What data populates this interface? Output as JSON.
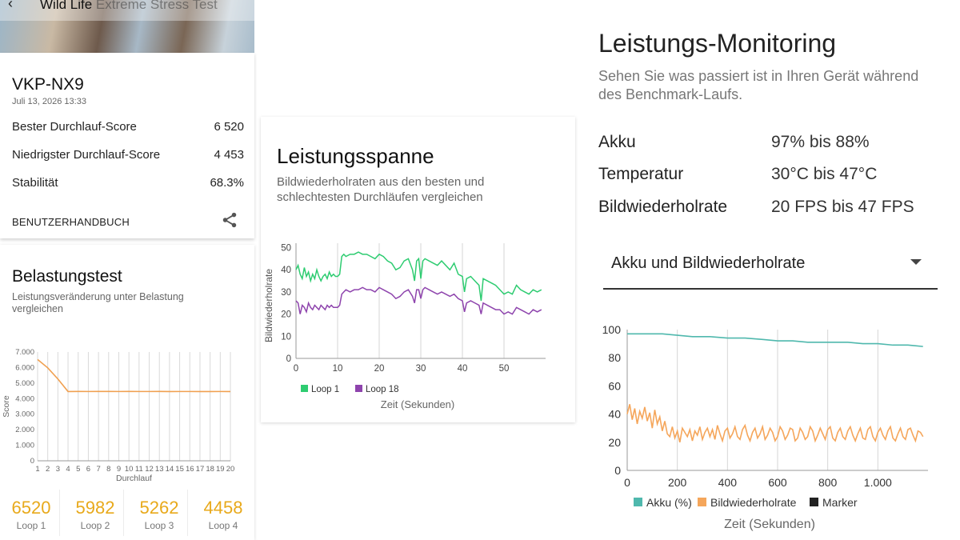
{
  "header": {
    "title_main": "Wild Life",
    "title_rest": " Extreme Stress Test"
  },
  "device": {
    "name": "VKP-NX9",
    "date": "Juli 13, 2026 13:33",
    "stats": [
      {
        "label": "Bester Durchlauf-Score",
        "value": "6 520"
      },
      {
        "label": "Niedrigster Durchlauf-Score",
        "value": "4 453"
      },
      {
        "label": "Stabilität",
        "value": "68.3%"
      }
    ],
    "manual_label": "BENUTZERHANDBUCH"
  },
  "stress": {
    "title": "Belastungstest",
    "subtitle": "Leistungsveränderung unter Belastung vergleichen",
    "loops": [
      {
        "score": "6520",
        "label": "Loop 1"
      },
      {
        "score": "5982",
        "label": "Loop 2"
      },
      {
        "score": "5262",
        "label": "Loop 3"
      },
      {
        "score": "4458",
        "label": "Loop 4"
      }
    ]
  },
  "range": {
    "title": "Leistungsspanne",
    "subtitle": "Bildwiederholraten aus den besten und schlechtesten Durchläufen vergleichen"
  },
  "monitor": {
    "title": "Leistungs-Monitoring",
    "subtitle": "Sehen Sie was passiert ist in Ihren Gerät während des Benchmark-Laufs.",
    "rows": [
      {
        "label": "Akku",
        "value": "97% bis 88%"
      },
      {
        "label": "Temperatur",
        "value": "30°C bis 47°C"
      },
      {
        "label": "Bildwiederholrate",
        "value": "20 FPS bis 47 FPS"
      }
    ],
    "dropdown_value": "Akku und Bildwiederholrate"
  },
  "chart_data": [
    {
      "type": "line",
      "xlabel": "Durchlauf",
      "ylabel": "Score",
      "x": [
        1,
        2,
        3,
        4,
        5,
        6,
        7,
        8,
        9,
        10,
        11,
        12,
        13,
        14,
        15,
        16,
        17,
        18,
        19,
        20
      ],
      "ylim": [
        0,
        7000
      ],
      "yticks": [
        "0",
        "1.000",
        "2.000",
        "3.000",
        "4.000",
        "5.000",
        "6.000",
        "7.000"
      ],
      "series": [
        {
          "values": [
            6520,
            5982,
            5262,
            4458,
            4460,
            4458,
            4462,
            4460,
            4458,
            4461,
            4459,
            4458,
            4460,
            4457,
            4459,
            4458,
            4456,
            4455,
            4458,
            4453
          ],
          "color": "#f0a050"
        }
      ],
      "grid": "vertical"
    },
    {
      "type": "line",
      "xlabel": "Zeit (Sekunden)",
      "ylabel": "Bildwiederholrate",
      "xlim": [
        0,
        60
      ],
      "ylim": [
        0,
        52
      ],
      "xticks": [
        0,
        10,
        20,
        30,
        40,
        50
      ],
      "yticks": [
        0,
        10,
        20,
        30,
        40,
        50
      ],
      "legend_position": "bottom",
      "series": [
        {
          "name": "Loop 1",
          "color": "#2ecc71",
          "x": [
            0,
            0.5,
            1,
            1.5,
            2,
            2.5,
            3,
            3.5,
            4,
            4.5,
            5,
            5.5,
            6,
            6.5,
            7,
            7.5,
            8,
            8.5,
            9,
            9.5,
            10,
            10.5,
            11,
            11.5,
            12,
            13,
            14,
            15,
            16,
            17,
            18,
            19,
            20,
            21,
            22,
            23,
            24,
            25,
            26,
            27,
            28,
            28.5,
            29,
            29.5,
            30,
            30.5,
            31,
            32,
            33,
            34,
            35,
            36,
            37,
            38,
            39,
            40,
            40.5,
            41,
            42,
            43,
            44,
            44.5,
            45,
            46,
            47,
            48,
            49,
            50,
            51,
            52,
            53,
            54,
            55,
            56,
            57,
            58,
            59
          ],
          "y": [
            40,
            42,
            38,
            36,
            41,
            37,
            39,
            35,
            38,
            36,
            40,
            37,
            35,
            37,
            38,
            36,
            39,
            37,
            38,
            37,
            37,
            38,
            46,
            47,
            46,
            47,
            47,
            48,
            47,
            47,
            46,
            45,
            47,
            46,
            44,
            43,
            40,
            41,
            44,
            45,
            40,
            35,
            44,
            45,
            36,
            44,
            45,
            44,
            43,
            42,
            44,
            42,
            40,
            43,
            38,
            37,
            30,
            36,
            37,
            35,
            33,
            26,
            36,
            35,
            34,
            33,
            31,
            29,
            30,
            29,
            33,
            31,
            30,
            29,
            31,
            30,
            31
          ]
        },
        {
          "name": "Loop 18",
          "color": "#8e44ad",
          "x": [
            0,
            0.5,
            1,
            1.5,
            2,
            2.5,
            3,
            3.5,
            4,
            4.5,
            5,
            5.5,
            6,
            6.5,
            7,
            7.5,
            8,
            8.5,
            9,
            9.5,
            10,
            10.5,
            11,
            11.5,
            12,
            13,
            14,
            15,
            16,
            17,
            18,
            19,
            20,
            21,
            22,
            23,
            24,
            25,
            26,
            27,
            28,
            28.5,
            29,
            29.5,
            30,
            30.5,
            31,
            32,
            33,
            34,
            35,
            36,
            37,
            38,
            39,
            40,
            40.5,
            41,
            42,
            43,
            44,
            44.5,
            45,
            46,
            47,
            48,
            49,
            50,
            51,
            52,
            53,
            54,
            55,
            56,
            57,
            58,
            59
          ],
          "y": [
            26,
            25,
            20,
            24,
            23,
            21,
            25,
            23,
            22,
            24,
            23,
            22,
            24,
            23,
            22,
            24,
            23,
            24,
            23,
            23,
            23,
            24,
            29,
            30,
            31,
            30,
            31,
            31,
            32,
            31,
            31,
            30,
            32,
            31,
            30,
            29,
            27,
            28,
            30,
            31,
            28,
            25,
            31,
            31,
            27,
            31,
            32,
            31,
            30,
            29,
            30,
            29,
            28,
            29,
            27,
            26,
            21,
            25,
            26,
            25,
            24,
            20,
            25,
            24,
            23,
            22,
            22,
            20,
            21,
            20,
            23,
            22,
            21,
            20,
            22,
            21,
            22
          ]
        }
      ]
    },
    {
      "type": "line",
      "xlabel": "Zeit (Sekunden)",
      "xlim": [
        0,
        1200
      ],
      "ylim": [
        0,
        100
      ],
      "xticks": [
        "0",
        "200",
        "400",
        "600",
        "800",
        "1.000"
      ],
      "yticks": [
        0,
        20,
        40,
        60,
        80,
        100
      ],
      "legend_position": "bottom",
      "legend": [
        "Akku (%)",
        "Bildwiederholrate",
        "Marker"
      ],
      "series": [
        {
          "name": "Akku (%)",
          "color": "#4fb8ad",
          "x": [
            0,
            70,
            140,
            200,
            260,
            330,
            400,
            470,
            540,
            600,
            660,
            720,
            800,
            880,
            940,
            1000,
            1060,
            1120,
            1180
          ],
          "y": [
            97,
            97,
            97,
            96,
            95,
            95,
            94,
            94,
            93,
            92,
            92,
            91,
            91,
            91,
            90,
            90,
            89,
            89,
            88
          ]
        },
        {
          "name": "Bildwiederholrate",
          "color": "#f5a65b",
          "x": [
            0,
            10,
            20,
            30,
            40,
            50,
            60,
            70,
            80,
            90,
            100,
            110,
            120,
            130,
            140,
            150,
            160,
            170,
            180,
            190,
            200,
            210,
            220,
            230,
            240,
            250,
            260,
            270,
            280,
            290,
            300,
            310,
            320,
            330,
            340,
            350,
            360,
            370,
            380,
            390,
            400,
            410,
            420,
            430,
            440,
            450,
            460,
            470,
            480,
            490,
            500,
            510,
            520,
            530,
            540,
            550,
            560,
            570,
            580,
            590,
            600,
            610,
            620,
            630,
            640,
            650,
            660,
            670,
            680,
            690,
            700,
            710,
            720,
            730,
            740,
            750,
            760,
            770,
            780,
            790,
            800,
            810,
            820,
            830,
            840,
            850,
            860,
            870,
            880,
            890,
            900,
            910,
            920,
            930,
            940,
            950,
            960,
            970,
            980,
            990,
            1000,
            1010,
            1020,
            1030,
            1040,
            1050,
            1060,
            1070,
            1080,
            1090,
            1100,
            1110,
            1120,
            1130,
            1140,
            1150,
            1160,
            1170,
            1180
          ],
          "y": [
            40,
            47,
            36,
            44,
            33,
            42,
            37,
            45,
            35,
            41,
            30,
            43,
            33,
            38,
            28,
            35,
            26,
            24,
            31,
            23,
            28,
            20,
            30,
            27,
            24,
            29,
            21,
            28,
            25,
            31,
            22,
            27,
            30,
            24,
            29,
            22,
            32,
            26,
            21,
            28,
            30,
            23,
            26,
            31,
            24,
            22,
            29,
            32,
            25,
            21,
            27,
            30,
            23,
            26,
            31,
            22,
            25,
            30,
            27,
            21,
            24,
            31,
            28,
            22,
            25,
            30,
            29,
            21,
            23,
            30,
            27,
            22,
            24,
            31,
            28,
            21,
            25,
            30,
            26,
            22,
            29,
            31,
            23,
            21,
            27,
            30,
            24,
            22,
            28,
            31,
            25,
            21,
            26,
            30,
            23,
            22,
            29,
            31,
            24,
            21,
            27,
            30,
            25,
            22,
            28,
            31,
            23,
            21,
            26,
            30,
            24,
            22,
            29,
            30,
            25,
            21,
            28,
            27,
            24
          ]
        }
      ]
    }
  ]
}
